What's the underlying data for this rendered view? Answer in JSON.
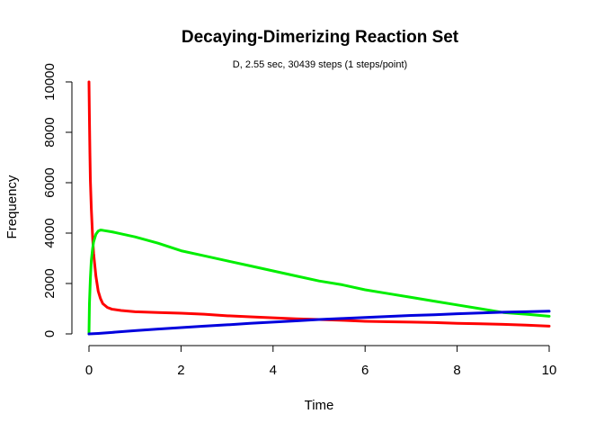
{
  "chart_data": {
    "type": "line",
    "title": "Decaying-Dimerizing Reaction Set",
    "subtitle": "D, 2.55 sec, 30439 steps (1 steps/point)",
    "xlabel": "Time",
    "ylabel": "Frequency",
    "xlim": [
      0,
      10
    ],
    "ylim": [
      0,
      10000
    ],
    "x_ticks": [
      0,
      2,
      4,
      6,
      8,
      10
    ],
    "y_ticks": [
      0,
      2000,
      4000,
      6000,
      8000,
      10000
    ],
    "grid": false,
    "legend": "none",
    "series": [
      {
        "color": "#ff0000",
        "points": [
          [
            0,
            10000
          ],
          [
            0.01,
            8500
          ],
          [
            0.02,
            7200
          ],
          [
            0.03,
            6100
          ],
          [
            0.05,
            5000
          ],
          [
            0.08,
            3800
          ],
          [
            0.1,
            3200
          ],
          [
            0.15,
            2300
          ],
          [
            0.2,
            1700
          ],
          [
            0.25,
            1400
          ],
          [
            0.3,
            1200
          ],
          [
            0.4,
            1050
          ],
          [
            0.5,
            980
          ],
          [
            0.7,
            930
          ],
          [
            1.0,
            880
          ],
          [
            1.5,
            850
          ],
          [
            2.0,
            820
          ],
          [
            2.5,
            780
          ],
          [
            3.0,
            720
          ],
          [
            3.5,
            680
          ],
          [
            4.0,
            640
          ],
          [
            4.5,
            600
          ],
          [
            5.0,
            570
          ],
          [
            5.5,
            540
          ],
          [
            6.0,
            500
          ],
          [
            6.5,
            480
          ],
          [
            7.0,
            470
          ],
          [
            7.5,
            450
          ],
          [
            8.0,
            420
          ],
          [
            8.5,
            400
          ],
          [
            9.0,
            380
          ],
          [
            9.5,
            350
          ],
          [
            10.0,
            310
          ]
        ]
      },
      {
        "color": "#00ee00",
        "points": [
          [
            0,
            0
          ],
          [
            0.01,
            1200
          ],
          [
            0.03,
            2200
          ],
          [
            0.05,
            2900
          ],
          [
            0.08,
            3400
          ],
          [
            0.1,
            3650
          ],
          [
            0.15,
            3950
          ],
          [
            0.2,
            4080
          ],
          [
            0.25,
            4120
          ],
          [
            0.3,
            4110
          ],
          [
            0.5,
            4050
          ],
          [
            1.0,
            3850
          ],
          [
            1.5,
            3600
          ],
          [
            2.0,
            3300
          ],
          [
            2.5,
            3100
          ],
          [
            3.0,
            2900
          ],
          [
            3.5,
            2700
          ],
          [
            4.0,
            2500
          ],
          [
            4.5,
            2300
          ],
          [
            5.0,
            2100
          ],
          [
            5.5,
            1950
          ],
          [
            6.0,
            1750
          ],
          [
            6.5,
            1600
          ],
          [
            7.0,
            1450
          ],
          [
            7.5,
            1300
          ],
          [
            8.0,
            1150
          ],
          [
            8.5,
            1000
          ],
          [
            9.0,
            850
          ],
          [
            9.5,
            780
          ],
          [
            10.0,
            700
          ]
        ]
      },
      {
        "color": "#0000dd",
        "points": [
          [
            0,
            0
          ],
          [
            0.2,
            20
          ],
          [
            0.5,
            60
          ],
          [
            1.0,
            130
          ],
          [
            1.5,
            190
          ],
          [
            2.0,
            250
          ],
          [
            2.5,
            310
          ],
          [
            3.0,
            360
          ],
          [
            3.5,
            420
          ],
          [
            4.0,
            470
          ],
          [
            4.5,
            520
          ],
          [
            5.0,
            570
          ],
          [
            5.5,
            610
          ],
          [
            6.0,
            650
          ],
          [
            6.5,
            690
          ],
          [
            7.0,
            730
          ],
          [
            7.5,
            760
          ],
          [
            8.0,
            800
          ],
          [
            8.5,
            830
          ],
          [
            9.0,
            860
          ],
          [
            9.5,
            880
          ],
          [
            10.0,
            900
          ]
        ]
      }
    ]
  }
}
